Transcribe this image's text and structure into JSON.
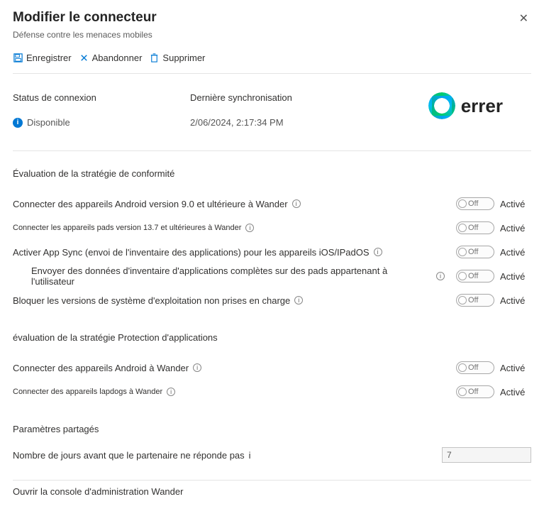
{
  "header": {
    "title": "Modifier le connecteur",
    "subtitle": "Défense contre les menaces mobiles"
  },
  "toolbar": {
    "save": "Enregistrer",
    "discard": "Abandonner",
    "delete": "Supprimer"
  },
  "status": {
    "connection_label": "Status de connexion",
    "connection_value": "Disponible",
    "sync_label": "Dernière synchronisation",
    "sync_value": "2/06/2024, 2:17:34 PM"
  },
  "brand": {
    "name": "errer"
  },
  "toggle_labels": {
    "off": "Off",
    "active": "Activé"
  },
  "sections": {
    "compliance": {
      "title": "Évaluation de la stratégie de conformité",
      "rows": [
        {
          "label": "Connecter des appareils Android version 9.0 et ultérieure à Wander",
          "info": true,
          "small": false,
          "indent": false
        },
        {
          "label": "Connecter les appareils pads version 13.7 et ultérieures à Wander",
          "info": true,
          "small": true,
          "indent": false
        },
        {
          "label": "Activer App Sync (envoi de l'inventaire des applications) pour les appareils iOS/IPadOS",
          "info": true,
          "small": false,
          "indent": false
        },
        {
          "label": "Envoyer des données d'inventaire d'applications complètes sur des pads appartenant à l'utilisateur",
          "info": true,
          "small": false,
          "indent": true
        },
        {
          "label": "Bloquer les versions de système d'exploitation non prises en charge",
          "info": true,
          "small": false,
          "indent": false
        }
      ]
    },
    "app_protection": {
      "title": "évaluation de la stratégie Protection d'applications",
      "rows": [
        {
          "label": "Connecter des appareils Android à Wander",
          "info": true,
          "small": false,
          "indent": false
        },
        {
          "label": "Connecter des appareils lapdogs à Wander",
          "info": true,
          "small": true,
          "indent": false
        }
      ]
    },
    "shared": {
      "title": "Paramètres partagés",
      "days_label": "Nombre de jours avant que le partenaire ne réponde pas",
      "days_value": "7"
    }
  },
  "footer": {
    "open_console": "Ouvrir la console d'administration Wander"
  },
  "colors": {
    "border": "#e4e4e4",
    "text": "#323130",
    "accent": "#0078d4"
  }
}
